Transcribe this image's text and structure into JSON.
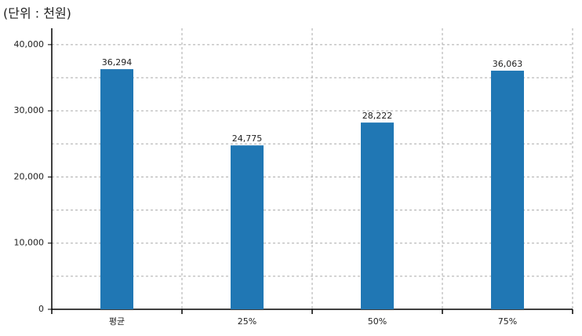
{
  "chart_data": {
    "type": "bar",
    "title": "(단위 : 천원)",
    "categories": [
      "평균",
      "25%",
      "50%",
      "75%"
    ],
    "values": [
      36294,
      24775,
      28222,
      36063
    ],
    "value_labels": [
      "36,294",
      "24,775",
      "28,222",
      "36,063"
    ],
    "color": "#2077b4",
    "ylim": [
      0,
      42000
    ],
    "yticks": [
      0,
      {
        "value": 10000,
        "label": "10,000"
      },
      {
        "value": 20000,
        "label": "20,000"
      },
      {
        "value": 30000,
        "label": "30,000"
      },
      {
        "value": 40000,
        "label": "40,000"
      }
    ],
    "y_minor_ticks": [
      5000,
      15000,
      25000,
      35000
    ],
    "grid": true
  }
}
